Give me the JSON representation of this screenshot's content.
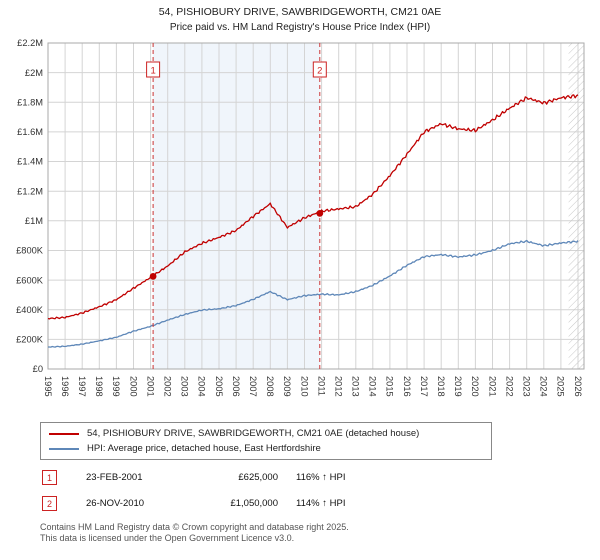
{
  "title": {
    "line1": "54, PISHIOBURY DRIVE, SAWBRIDGEWORTH, CM21 0AE",
    "line2": "Price paid vs. HM Land Registry's House Price Index (HPI)"
  },
  "colors": {
    "property_line": "#c00000",
    "hpi_line": "#5e87b8",
    "marker": "#c00000",
    "dashed": "#cc3333",
    "shade": "#e3ecf8",
    "grid": "#d4d4d4",
    "border": "#aaaaaa",
    "hatch": "#c8c8c8",
    "badge_red": "#cc2222",
    "tick_text": "#333333"
  },
  "chart_data": {
    "type": "line",
    "title": "54, PISHIOBURY DRIVE, SAWBRIDGEWORTH, CM21 0AE — Price paid vs. HM Land Registry's House Price Index (HPI)",
    "xlabel": "",
    "ylabel": "",
    "grid": true,
    "legend_position": "below",
    "x_range": [
      1995,
      2026.35
    ],
    "y_range_k": [
      0,
      2200
    ],
    "line_end": 2026.05,
    "hatch_from": 2025.45,
    "shaded_region": [
      2001.15,
      2010.9
    ],
    "x_tick_years": [
      1995,
      1996,
      1997,
      1998,
      1999,
      2000,
      2001,
      2002,
      2003,
      2004,
      2005,
      2006,
      2007,
      2008,
      2009,
      2010,
      2011,
      2012,
      2013,
      2014,
      2015,
      2016,
      2017,
      2018,
      2019,
      2020,
      2021,
      2022,
      2023,
      2024,
      2025,
      2026
    ],
    "y_ticks": [
      {
        "v": 0,
        "label": "£0"
      },
      {
        "v": 200,
        "label": "£200K"
      },
      {
        "v": 400,
        "label": "£400K"
      },
      {
        "v": 600,
        "label": "£600K"
      },
      {
        "v": 800,
        "label": "£800K"
      },
      {
        "v": 1000,
        "label": "£1M"
      },
      {
        "v": 1200,
        "label": "£1.2M"
      },
      {
        "v": 1400,
        "label": "£1.4M"
      },
      {
        "v": 1600,
        "label": "£1.6M"
      },
      {
        "v": 1800,
        "label": "£1.8M"
      },
      {
        "v": 2000,
        "label": "£2M"
      },
      {
        "v": 2200,
        "label": "£2.2M"
      }
    ],
    "x_years": [
      1995,
      1996,
      1997,
      1998,
      1999,
      2000,
      2001,
      2002,
      2003,
      2004,
      2005,
      2006,
      2007,
      2008,
      2009,
      2010,
      2011,
      2012,
      2013,
      2014,
      2015,
      2016,
      2017,
      2018,
      2019,
      2020,
      2021,
      2022,
      2023,
      2024,
      2025,
      2026
    ],
    "series": [
      {
        "name": "54, PISHIOBURY DRIVE, SAWBRIDGEWORTH, CM21 0AE (detached house)",
        "color": "#c00000",
        "jitter_k": 15,
        "values_k": [
          340,
          348,
          378,
          420,
          468,
          545,
          618,
          695,
          790,
          848,
          888,
          935,
          1030,
          1115,
          955,
          1020,
          1065,
          1080,
          1095,
          1180,
          1305,
          1450,
          1600,
          1655,
          1620,
          1610,
          1680,
          1760,
          1830,
          1795,
          1830,
          1845
        ]
      },
      {
        "name": "HPI: Average price, detached house, East Hertfordshire",
        "color": "#5e87b8",
        "jitter_k": 8,
        "values_k": [
          148,
          153,
          168,
          190,
          214,
          255,
          288,
          330,
          368,
          398,
          406,
          428,
          470,
          522,
          468,
          495,
          505,
          500,
          522,
          565,
          628,
          700,
          758,
          772,
          756,
          770,
          800,
          845,
          862,
          832,
          850,
          862
        ]
      }
    ],
    "sales": [
      {
        "n": "1",
        "year_frac": 2001.15,
        "price_k": 625,
        "date": "23-FEB-2001",
        "price": "£625,000",
        "hpi": "116% ↑ HPI"
      },
      {
        "n": "2",
        "year_frac": 2010.9,
        "price_k": 1050,
        "date": "26-NOV-2010",
        "price": "£1,050,000",
        "hpi": "114% ↑ HPI"
      }
    ]
  },
  "legend": {
    "items": [
      {
        "label": "54, PISHIOBURY DRIVE, SAWBRIDGEWORTH, CM21 0AE (detached house)"
      },
      {
        "label": "HPI: Average price, detached house, East Hertfordshire"
      }
    ]
  },
  "table": {
    "rows": [
      {
        "num": "1",
        "date": "23-FEB-2001",
        "price": "£625,000",
        "hpi": "116% ↑ HPI"
      },
      {
        "num": "2",
        "date": "26-NOV-2010",
        "price": "£1,050,000",
        "hpi": "114% ↑ HPI"
      }
    ]
  },
  "footer": {
    "line1": "Contains HM Land Registry data © Crown copyright and database right 2025.",
    "line2": "This data is licensed under the Open Government Licence v3.0."
  }
}
